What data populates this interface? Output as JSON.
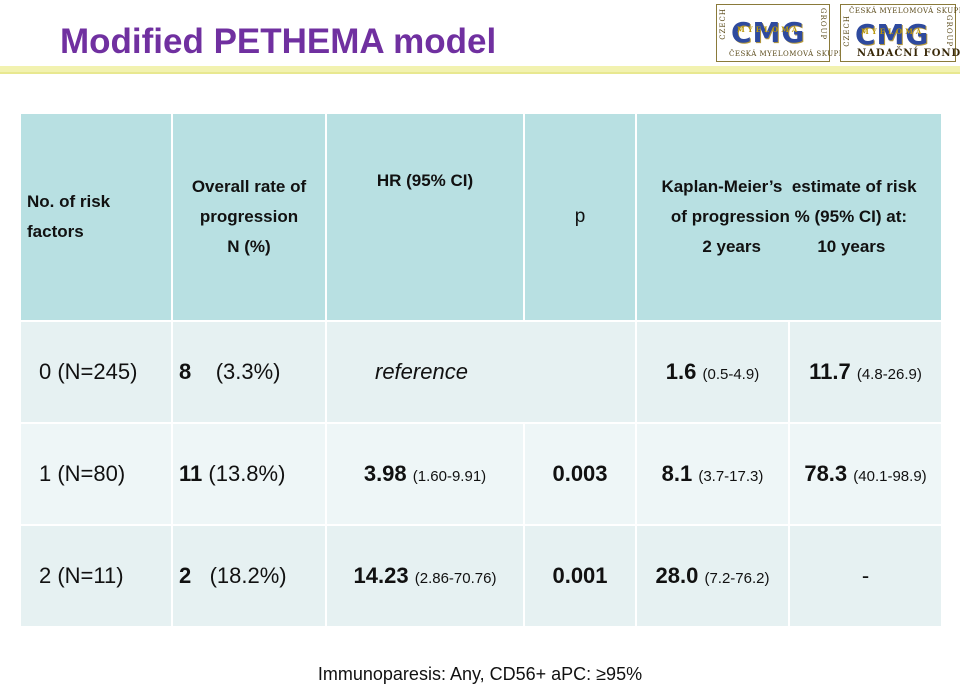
{
  "title": "Modified PETHEMA model",
  "logos": [
    {
      "side_left": "CZECH",
      "side_right": "GROUP",
      "mark": "CMG",
      "overlay": "MYELOMA",
      "bottom": "ČESKÁ MYELOMOVÁ SKUPINA"
    },
    {
      "top": "ČESKÁ MYELOMOVÁ SKUPINA",
      "side_left": "CZECH",
      "side_right": "GROUP",
      "mark": "CMG",
      "overlay": "MYELOMA",
      "bottom": "NADAČNÍ FOND"
    }
  ],
  "table": {
    "headers": {
      "risk": "No. of risk factors",
      "overall_l1": "Overall rate of",
      "overall_l2": "progression",
      "overall_l3": "N (%)",
      "hr": "HR (95% CI)",
      "p": "p",
      "km_l1": "Kaplan-Meier’s  estimate of risk",
      "km_l2": "of progression % (95% CI) at:",
      "km_2y": "2 years",
      "km_10y": "10 years"
    },
    "rows": [
      {
        "risk": "0 (N=245)",
        "n": "8",
        "pct": "(3.3%)",
        "hr": "reference",
        "hr_ci": "",
        "p": "",
        "y2": "1.6",
        "y2_ci": "(0.5-4.9)",
        "y10": "11.7",
        "y10_ci": "(4.8-26.9)"
      },
      {
        "risk": "1 (N=80)",
        "n": "11",
        "pct": "(13.8%)",
        "hr": "3.98",
        "hr_ci": "(1.60-9.91)",
        "p": "0.003",
        "y2": "8.1",
        "y2_ci": "(3.7-17.3)",
        "y10": "78.3",
        "y10_ci": "(40.1-98.9)"
      },
      {
        "risk": "2 (N=11)",
        "n": "2",
        "pct": "(18.2%)",
        "hr": "14.23",
        "hr_ci": "(2.86-70.76)",
        "p": "0.001",
        "y2": "28.0",
        "y2_ci": "(7.2-76.2)",
        "y10": "-",
        "y10_ci": ""
      }
    ]
  },
  "footnote": "Immunoparesis: Any, CD56+ aPC: ≥95%",
  "colors": {
    "title": "#7030a0",
    "header_bg": "#b8e0e2",
    "row_bg": "#e6f1f2",
    "logo_blue": "#2e4a9e"
  }
}
